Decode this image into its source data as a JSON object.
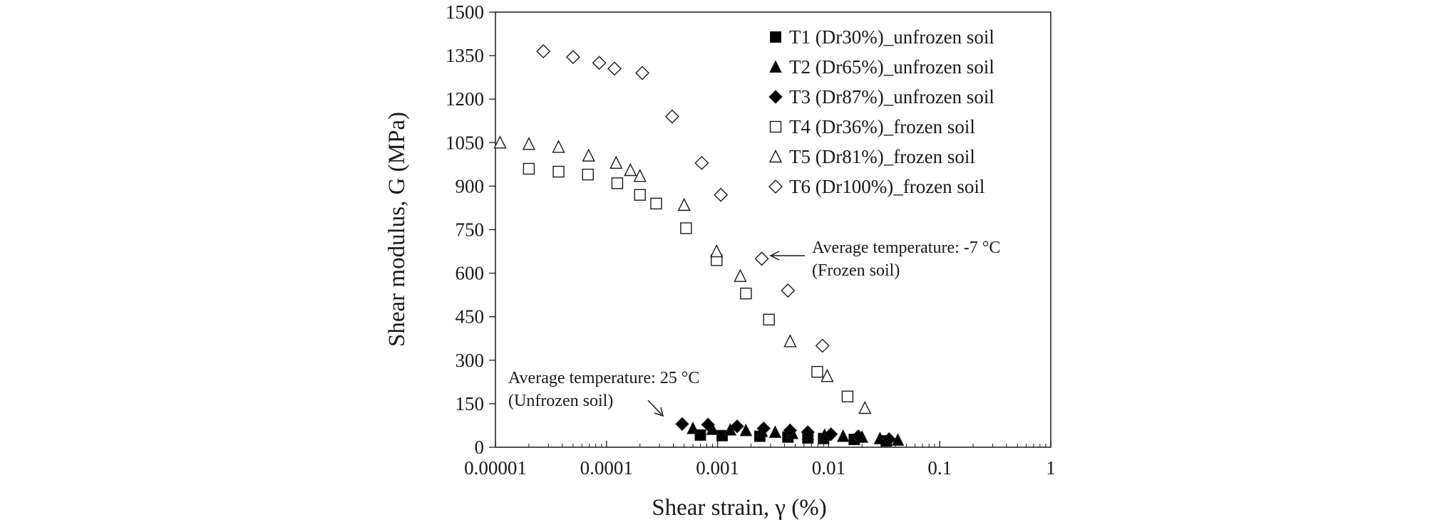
{
  "chart_data": {
    "type": "scatter",
    "x_scale": "log",
    "xlim": [
      1e-05,
      1
    ],
    "ylim": [
      0,
      1500
    ],
    "x_ticks": [
      "0.00001",
      "0.0001",
      "0.001",
      "0.01",
      "0.1",
      "1"
    ],
    "y_ticks": [
      "0",
      "150",
      "300",
      "450",
      "600",
      "750",
      "900",
      "1050",
      "1200",
      "1350",
      "1500"
    ],
    "xlabel": "Shear strain, γ (%)",
    "ylabel": "Shear modulus, G (MPa)",
    "grid": false,
    "legend_position": "top-right",
    "series": [
      {
        "name": "T1 (Dr30%)_unfrozen soil",
        "marker": "square-filled",
        "points": [
          [
            0.0007,
            42
          ],
          [
            0.0011,
            40
          ],
          [
            0.0024,
            38
          ],
          [
            0.0043,
            35
          ],
          [
            0.0065,
            32
          ],
          [
            0.009,
            30
          ],
          [
            0.017,
            27
          ],
          [
            0.033,
            22
          ]
        ]
      },
      {
        "name": "T2 (Dr65%)_unfrozen soil",
        "marker": "triangle-filled",
        "points": [
          [
            0.0006,
            65
          ],
          [
            0.0009,
            62
          ],
          [
            0.0013,
            60
          ],
          [
            0.0018,
            58
          ],
          [
            0.0025,
            55
          ],
          [
            0.0033,
            52
          ],
          [
            0.0047,
            48
          ],
          [
            0.0065,
            45
          ],
          [
            0.0092,
            42
          ],
          [
            0.0135,
            38
          ],
          [
            0.02,
            35
          ],
          [
            0.029,
            30
          ],
          [
            0.042,
            25
          ]
        ]
      },
      {
        "name": "T3 (Dr87%)_unfrozen soil",
        "marker": "diamond-filled",
        "points": [
          [
            0.00048,
            80
          ],
          [
            0.00082,
            78
          ],
          [
            0.0015,
            72
          ],
          [
            0.0026,
            65
          ],
          [
            0.0045,
            58
          ],
          [
            0.0065,
            52
          ],
          [
            0.0105,
            45
          ],
          [
            0.0185,
            38
          ],
          [
            0.035,
            28
          ]
        ]
      },
      {
        "name": "T4 (Dr36%)_frozen soil",
        "marker": "square-open",
        "points": [
          [
            2e-05,
            960
          ],
          [
            3.7e-05,
            950
          ],
          [
            6.8e-05,
            940
          ],
          [
            0.000125,
            910
          ],
          [
            0.0002,
            870
          ],
          [
            0.00028,
            840
          ],
          [
            0.00052,
            755
          ],
          [
            0.00098,
            645
          ],
          [
            0.0018,
            530
          ],
          [
            0.0029,
            440
          ],
          [
            0.0079,
            260
          ],
          [
            0.0148,
            175
          ]
        ]
      },
      {
        "name": "T5 (Dr81%)_frozen soil",
        "marker": "triangle-open",
        "points": [
          [
            1.1e-05,
            1050
          ],
          [
            2e-05,
            1045
          ],
          [
            3.7e-05,
            1035
          ],
          [
            6.9e-05,
            1005
          ],
          [
            0.000122,
            980
          ],
          [
            0.000164,
            955
          ],
          [
            0.0002,
            935
          ],
          [
            0.0005,
            835
          ],
          [
            0.00098,
            675
          ],
          [
            0.0016,
            590
          ],
          [
            0.0045,
            365
          ],
          [
            0.0097,
            245
          ],
          [
            0.0212,
            135
          ]
        ]
      },
      {
        "name": "T6 (Dr100%)_frozen soil",
        "marker": "diamond-open",
        "points": [
          [
            2.7e-05,
            1365
          ],
          [
            5e-05,
            1345
          ],
          [
            8.6e-05,
            1325
          ],
          [
            0.000118,
            1305
          ],
          [
            0.00021,
            1290
          ],
          [
            0.00039,
            1140
          ],
          [
            0.00072,
            980
          ],
          [
            0.00107,
            870
          ],
          [
            0.0025,
            650
          ],
          [
            0.0043,
            540
          ],
          [
            0.0088,
            350
          ]
        ]
      }
    ],
    "annotations": [
      {
        "line1": "Average temperature: -7 °C",
        "line2": "(Frozen soil)"
      },
      {
        "line1": "Average temperature: 25 °C",
        "line2": "(Unfrozen soil)"
      }
    ]
  }
}
